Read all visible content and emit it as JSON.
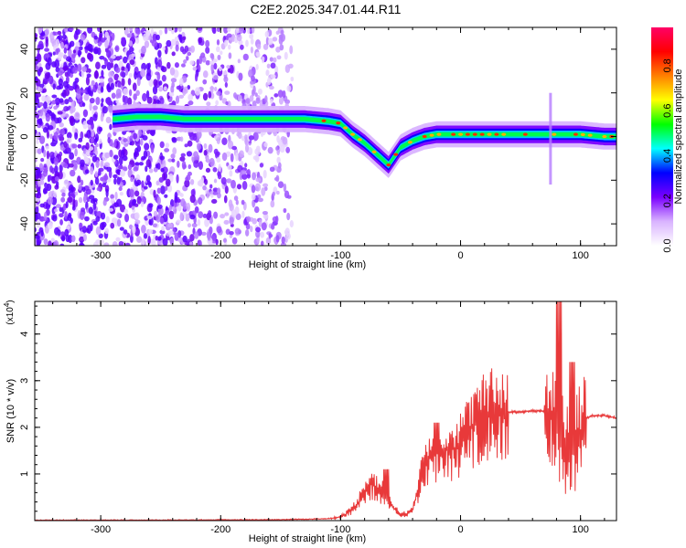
{
  "title": "C2E2.2025.347.01.44.R11",
  "chart_data": [
    {
      "type": "heatmap",
      "panel": "top",
      "xlabel": "Height of straight line (km)",
      "ylabel": "Frequency (Hz)",
      "xlim": [
        -355,
        130
      ],
      "ylim": [
        -50,
        50
      ],
      "xticks": [
        -300,
        -200,
        -100,
        0,
        100
      ],
      "yticks": [
        -40,
        -20,
        0,
        20,
        40
      ],
      "colorbar": {
        "label": "Normalized spectral amplitude",
        "range": [
          0,
          0.97
        ],
        "ticks": [
          0.0,
          0.2,
          0.4,
          0.6,
          0.8
        ],
        "colormap": [
          "#ffffff",
          "#d9b3ff",
          "#7a00ff",
          "#0000ff",
          "#00ffff",
          "#00ff00",
          "#ffff00",
          "#ff8000",
          "#ff0000",
          "#ff0066"
        ]
      },
      "ridge": {
        "x": [
          -290,
          -270,
          -250,
          -230,
          -210,
          -190,
          -170,
          -150,
          -130,
          -110,
          -100,
          -90,
          -80,
          -70,
          -60,
          -50,
          -40,
          -30,
          -20,
          -10,
          0,
          20,
          40,
          60,
          80,
          100,
          120,
          130
        ],
        "y": [
          8,
          9,
          9,
          8,
          8,
          8,
          8,
          8,
          8,
          7,
          6,
          1,
          -3,
          -8,
          -13,
          -5,
          -2,
          0,
          1,
          1,
          1,
          1,
          1,
          1,
          1,
          1,
          0,
          0
        ]
      }
    },
    {
      "type": "line",
      "panel": "bottom",
      "xlabel": "Height of straight line (km)",
      "ylabel": "SNR (10 * v/v)",
      "scale_label": "(x10",
      "scale_exponent": "4",
      "scale_close": ")",
      "xlim": [
        -355,
        130
      ],
      "ylim": [
        0,
        4.7
      ],
      "xticks": [
        -300,
        -200,
        -100,
        0,
        100
      ],
      "yticks": [
        1,
        2,
        3,
        4
      ],
      "color": "#e8393a",
      "envelope": {
        "x": [
          -355,
          -250,
          -150,
          -110,
          -100,
          -95,
          -90,
          -85,
          -80,
          -75,
          -70,
          -65,
          -60,
          -55,
          -50,
          -45,
          -40,
          -35,
          -30,
          -25,
          -20,
          -15,
          -10,
          -5,
          0,
          5,
          10,
          20,
          30,
          40,
          50,
          60,
          70,
          75,
          80,
          85,
          90,
          95,
          100,
          105,
          110,
          120,
          130
        ],
        "y": [
          0.01,
          0.01,
          0.02,
          0.04,
          0.08,
          0.15,
          0.25,
          0.4,
          0.65,
          0.8,
          0.7,
          0.6,
          0.4,
          0.25,
          0.12,
          0.15,
          0.25,
          0.7,
          1.2,
          1.4,
          1.45,
          1.5,
          1.5,
          1.55,
          1.65,
          1.8,
          2.0,
          2.2,
          2.3,
          2.33,
          2.33,
          2.35,
          2.35,
          2.3,
          2.0,
          1.6,
          1.4,
          1.5,
          1.9,
          2.2,
          2.25,
          2.25,
          2.2
        ]
      },
      "peaks": [
        {
          "x": -62,
          "y": 1.1
        },
        {
          "x": -20,
          "y": 2.1
        },
        {
          "x": 82,
          "y": 4.7
        },
        {
          "x": 86,
          "y": 0.2
        },
        {
          "x": 93,
          "y": 3.4
        }
      ]
    }
  ]
}
